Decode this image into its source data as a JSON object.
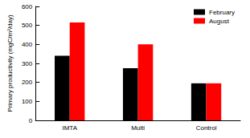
{
  "chart_data": {
    "type": "bar",
    "y_label": "Primary productivity (mgC/m²/day)",
    "categories": [
      "IMTA",
      "Multi",
      "Control"
    ],
    "series": [
      {
        "name": "February",
        "color": "#000000",
        "values": [
          340,
          275,
          195
        ]
      },
      {
        "name": "August",
        "color": "#ff0000",
        "values": [
          515,
          400,
          195
        ]
      }
    ],
    "ylim": [
      0,
      600
    ],
    "yticks": [
      0,
      100,
      200,
      300,
      400,
      500,
      600
    ],
    "grid": false,
    "legend": "upper right"
  }
}
